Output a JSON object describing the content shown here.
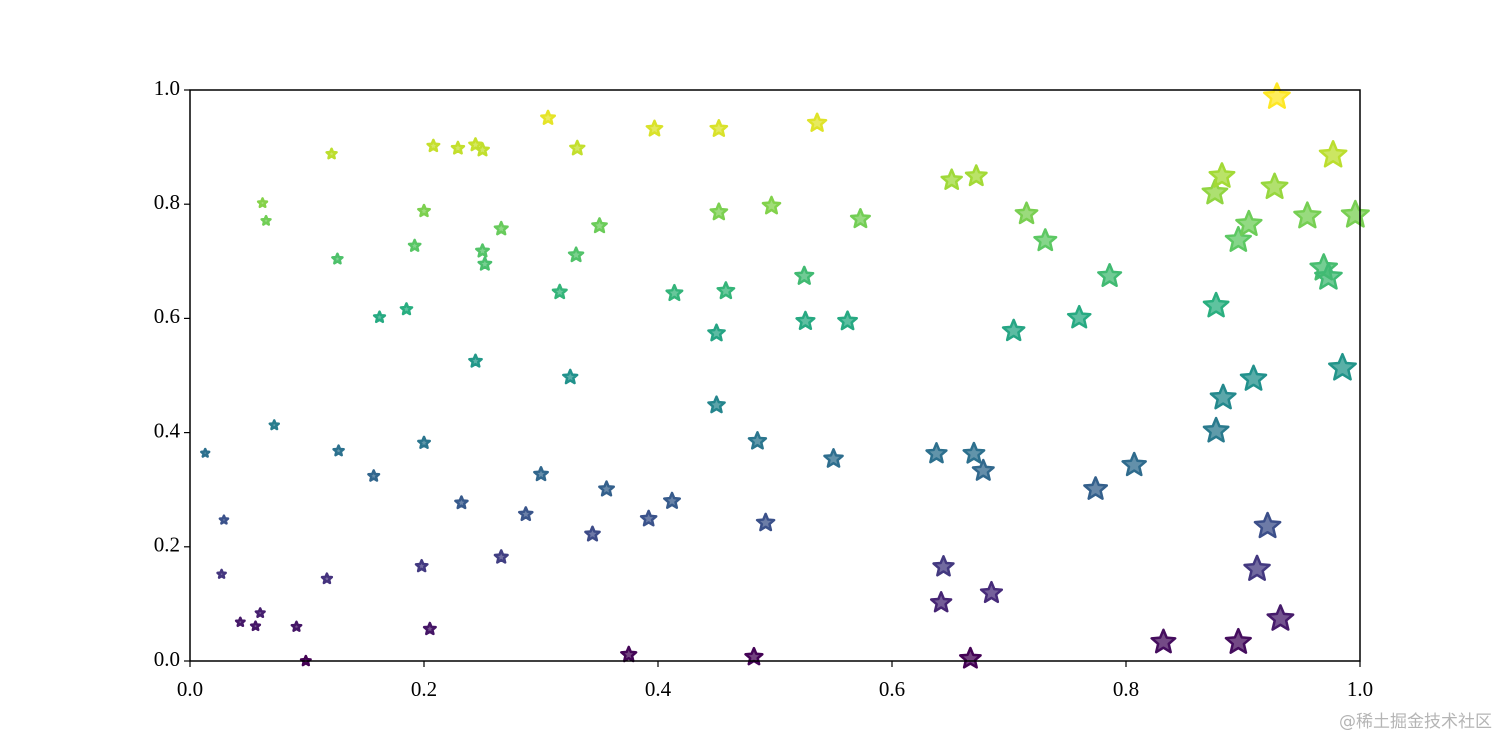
{
  "chart_data": {
    "type": "scatter",
    "marker": "star",
    "colormap": "viridis",
    "color_by": "y",
    "size_by": "x",
    "xlim": [
      0,
      1
    ],
    "ylim": [
      0,
      1
    ],
    "xticks": [
      {
        "value": 0,
        "label": "0.0"
      },
      0.2,
      0.4,
      0.6,
      0.8,
      {
        "value": 1,
        "label": "1.0"
      }
    ],
    "yticks": [
      {
        "value": 0,
        "label": "0.0"
      },
      0.2,
      0.4,
      0.6,
      0.8,
      {
        "value": 1,
        "label": "1.0"
      }
    ],
    "x": [
      0.013,
      0.029,
      0.027,
      0.043,
      0.056,
      0.06,
      0.062,
      0.065,
      0.072,
      0.091,
      0.099,
      0.117,
      0.121,
      0.126,
      0.127,
      0.157,
      0.162,
      0.185,
      0.192,
      0.198,
      0.2,
      0.2,
      0.205,
      0.208,
      0.229,
      0.232,
      0.244,
      0.244,
      0.25,
      0.25,
      0.252,
      0.266,
      0.266,
      0.287,
      0.3,
      0.306,
      0.316,
      0.325,
      0.33,
      0.331,
      0.344,
      0.35,
      0.356,
      0.375,
      0.392,
      0.397,
      0.412,
      0.414,
      0.45,
      0.45,
      0.452,
      0.452,
      0.458,
      0.482,
      0.485,
      0.492,
      0.497,
      0.525,
      0.526,
      0.536,
      0.55,
      0.562,
      0.573,
      0.638,
      0.642,
      0.644,
      0.651,
      0.667,
      0.67,
      0.672,
      0.678,
      0.685,
      0.704,
      0.715,
      0.731,
      0.76,
      0.774,
      0.786,
      0.807,
      0.832,
      0.876,
      0.877,
      0.877,
      0.883,
      0.882,
      0.896,
      0.896,
      0.905,
      0.909,
      0.912,
      0.921,
      0.927,
      0.929,
      0.932,
      0.955,
      0.969,
      0.973,
      0.977,
      0.985,
      0.996
    ],
    "y": [
      0.364,
      0.247,
      0.152,
      0.068,
      0.061,
      0.084,
      0.802,
      0.771,
      0.413,
      0.06,
      0.0,
      0.144,
      0.888,
      0.704,
      0.368,
      0.324,
      0.602,
      0.616,
      0.727,
      0.166,
      0.788,
      0.382,
      0.056,
      0.902,
      0.898,
      0.277,
      0.525,
      0.904,
      0.895,
      0.718,
      0.695,
      0.182,
      0.757,
      0.257,
      0.327,
      0.951,
      0.646,
      0.497,
      0.711,
      0.898,
      0.222,
      0.762,
      0.301,
      0.011,
      0.249,
      0.932,
      0.28,
      0.644,
      0.574,
      0.448,
      0.932,
      0.786,
      0.648,
      0.007,
      0.385,
      0.242,
      0.797,
      0.674,
      0.595,
      0.942,
      0.354,
      0.595,
      0.774,
      0.363,
      0.102,
      0.165,
      0.842,
      0.004,
      0.363,
      0.849,
      0.333,
      0.119,
      0.578,
      0.783,
      0.736,
      0.601,
      0.301,
      0.674,
      0.343,
      0.033,
      0.82,
      0.403,
      0.622,
      0.461,
      0.849,
      0.033,
      0.737,
      0.765,
      0.494,
      0.161,
      0.236,
      0.83,
      0.988,
      0.074,
      0.779,
      0.688,
      0.672,
      0.886,
      0.513,
      0.781
    ]
  },
  "watermark": "@稀土掘金技术社区"
}
